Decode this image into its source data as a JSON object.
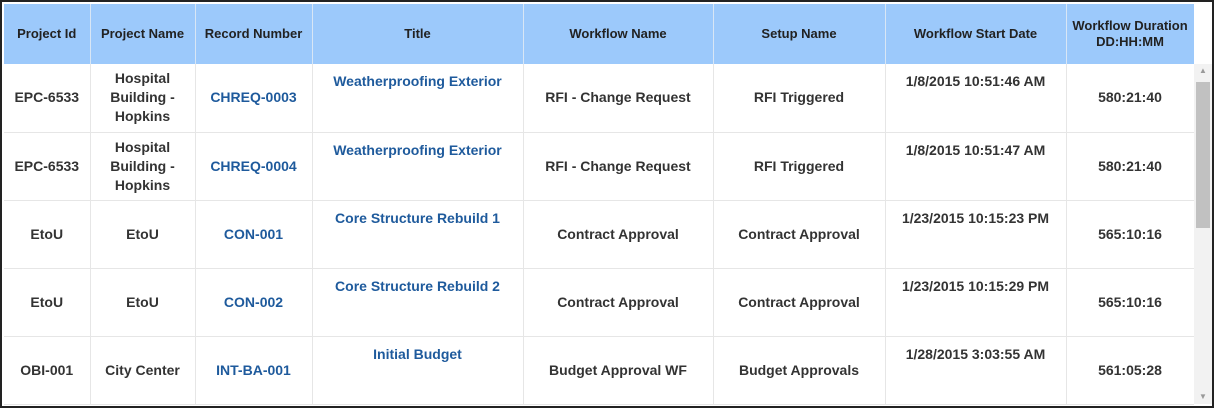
{
  "columns": [
    "Project Id",
    "Project Name",
    "Record Number",
    "Title",
    "Workflow Name",
    "Setup Name",
    "Workflow Start Date",
    "Workflow Duration DD:HH:MM"
  ],
  "rows": [
    {
      "project_id": "EPC-6533",
      "project_name": "Hospital Building - Hopkins",
      "record_number": "CHREQ-0003",
      "title": "Weatherproofing Exterior",
      "workflow_name": "RFI - Change Request",
      "setup_name": "RFI Triggered",
      "start_date": "1/8/2015 10:51:46 AM",
      "duration": "580:21:40"
    },
    {
      "project_id": "EPC-6533",
      "project_name": "Hospital Building - Hopkins",
      "record_number": "CHREQ-0004",
      "title": "Weatherproofing Exterior",
      "workflow_name": "RFI - Change Request",
      "setup_name": "RFI Triggered",
      "start_date": "1/8/2015 10:51:47 AM",
      "duration": "580:21:40"
    },
    {
      "project_id": "EtoU",
      "project_name": "EtoU",
      "record_number": "CON-001",
      "title": "Core Structure Rebuild 1",
      "workflow_name": "Contract Approval",
      "setup_name": "Contract Approval",
      "start_date": "1/23/2015 10:15:23 PM",
      "duration": "565:10:16"
    },
    {
      "project_id": "EtoU",
      "project_name": "EtoU",
      "record_number": "CON-002",
      "title": "Core Structure Rebuild 2",
      "workflow_name": "Contract Approval",
      "setup_name": "Contract Approval",
      "start_date": "1/23/2015 10:15:29 PM",
      "duration": "565:10:16"
    },
    {
      "project_id": "OBI-001",
      "project_name": "City Center",
      "record_number": "INT-BA-001",
      "title": "Initial Budget",
      "workflow_name": "Budget Approval WF",
      "setup_name": "Budget Approvals",
      "start_date": "1/28/2015 3:03:55 AM",
      "duration": "561:05:28"
    }
  ],
  "colors": {
    "header_bg": "#9cc9fb",
    "link": "#1e5a9c"
  },
  "icons": {
    "scroll_up": "arrow-up-icon",
    "scroll_down": "arrow-down-icon"
  }
}
